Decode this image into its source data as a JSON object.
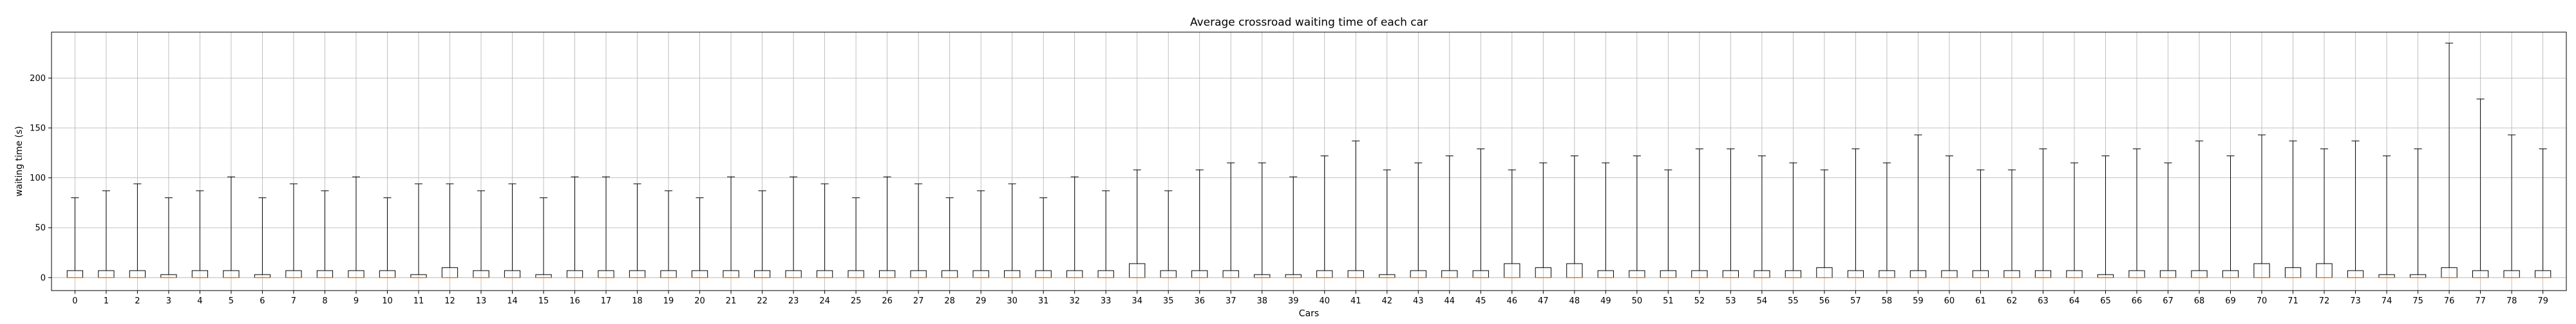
{
  "chart_data": {
    "type": "boxplot",
    "title": "Average crossroad waiting time of each car",
    "xlabel": "Cars",
    "ylabel": "waiting time (s)",
    "ylim": [
      -13,
      246
    ],
    "yticks": [
      0,
      50,
      100,
      150,
      200
    ],
    "grid": true,
    "box_color": "#000000",
    "median_color": "#ff7f0e",
    "grid_color": "#b0b0b0",
    "categories": [
      "0",
      "1",
      "2",
      "3",
      "4",
      "5",
      "6",
      "7",
      "8",
      "9",
      "10",
      "11",
      "12",
      "13",
      "14",
      "15",
      "16",
      "17",
      "18",
      "19",
      "20",
      "21",
      "22",
      "23",
      "24",
      "25",
      "26",
      "27",
      "28",
      "29",
      "30",
      "31",
      "32",
      "33",
      "34",
      "35",
      "36",
      "37",
      "38",
      "39",
      "40",
      "41",
      "42",
      "43",
      "44",
      "45",
      "46",
      "47",
      "48",
      "49",
      "50",
      "51",
      "52",
      "53",
      "54",
      "55",
      "56",
      "57",
      "58",
      "59",
      "60",
      "61",
      "62",
      "63",
      "64",
      "65",
      "66",
      "67",
      "68",
      "69",
      "70",
      "71",
      "72",
      "73",
      "74",
      "75",
      "76",
      "77",
      "78",
      "79"
    ],
    "whisker_max": [
      80,
      87,
      94,
      80,
      87,
      101,
      80,
      94,
      87,
      101,
      80,
      94,
      94,
      87,
      94,
      80,
      101,
      101,
      94,
      87,
      80,
      101,
      87,
      101,
      94,
      80,
      101,
      94,
      80,
      87,
      94,
      80,
      101,
      87,
      108,
      87,
      108,
      115,
      115,
      101,
      122,
      137,
      108,
      115,
      122,
      129,
      108,
      115,
      122,
      115,
      122,
      108,
      129,
      129,
      122,
      115,
      108,
      129,
      115,
      143,
      122,
      108,
      108,
      129,
      115,
      122,
      129,
      115,
      137,
      122,
      143,
      137,
      129,
      137,
      122,
      129,
      235,
      179,
      143,
      129
    ],
    "q1": [
      0,
      0,
      0,
      0,
      0,
      0,
      0,
      0,
      0,
      0,
      0,
      0,
      0,
      0,
      0,
      0,
      0,
      0,
      0,
      0,
      0,
      0,
      0,
      0,
      0,
      0,
      0,
      0,
      0,
      0,
      0,
      0,
      0,
      0,
      0,
      0,
      0,
      0,
      0,
      0,
      0,
      0,
      0,
      0,
      0,
      0,
      0,
      0,
      0,
      0,
      0,
      0,
      0,
      0,
      0,
      0,
      0,
      0,
      0,
      0,
      0,
      0,
      0,
      0,
      0,
      0,
      0,
      0,
      0,
      0,
      0,
      0,
      0,
      0,
      0,
      0,
      0,
      0,
      0,
      0
    ],
    "median": [
      0,
      0,
      0,
      0,
      0,
      0,
      0,
      0,
      0,
      0,
      0,
      0,
      0,
      0,
      0,
      0,
      0,
      0,
      0,
      0,
      0,
      0,
      0,
      0,
      0,
      0,
      0,
      0,
      0,
      0,
      0,
      0,
      0,
      0,
      0,
      0,
      0,
      0,
      0,
      0,
      0,
      0,
      0,
      0,
      0,
      0,
      0,
      0,
      0,
      0,
      0,
      0,
      0,
      0,
      0,
      0,
      0,
      0,
      0,
      0,
      0,
      0,
      0,
      0,
      0,
      0,
      0,
      0,
      0,
      0,
      0,
      0,
      0,
      0,
      0,
      0,
      0,
      0,
      0,
      0
    ],
    "q3": [
      7,
      7,
      7,
      3,
      7,
      7,
      3,
      7,
      7,
      7,
      7,
      3,
      10,
      7,
      7,
      3,
      7,
      7,
      7,
      7,
      7,
      7,
      7,
      7,
      7,
      7,
      7,
      7,
      7,
      7,
      7,
      7,
      7,
      7,
      14,
      7,
      7,
      7,
      3,
      3,
      7,
      7,
      3,
      7,
      7,
      7,
      14,
      10,
      14,
      7,
      7,
      7,
      7,
      7,
      7,
      7,
      10,
      7,
      7,
      7,
      7,
      7,
      7,
      7,
      7,
      3,
      7,
      7,
      7,
      7,
      14,
      10,
      14,
      7,
      3,
      3,
      10,
      7,
      7,
      7
    ],
    "whisker_min": [
      0,
      0,
      0,
      0,
      0,
      0,
      0,
      0,
      0,
      0,
      0,
      0,
      0,
      0,
      0,
      0,
      0,
      0,
      0,
      0,
      0,
      0,
      0,
      0,
      0,
      0,
      0,
      0,
      0,
      0,
      0,
      0,
      0,
      0,
      0,
      0,
      0,
      0,
      0,
      0,
      0,
      0,
      0,
      0,
      0,
      0,
      0,
      0,
      0,
      0,
      0,
      0,
      0,
      0,
      0,
      0,
      0,
      0,
      0,
      0,
      0,
      0,
      0,
      0,
      0,
      0,
      0,
      0,
      0,
      0,
      0,
      0,
      0,
      0,
      0,
      0,
      0,
      0,
      0,
      0
    ]
  }
}
